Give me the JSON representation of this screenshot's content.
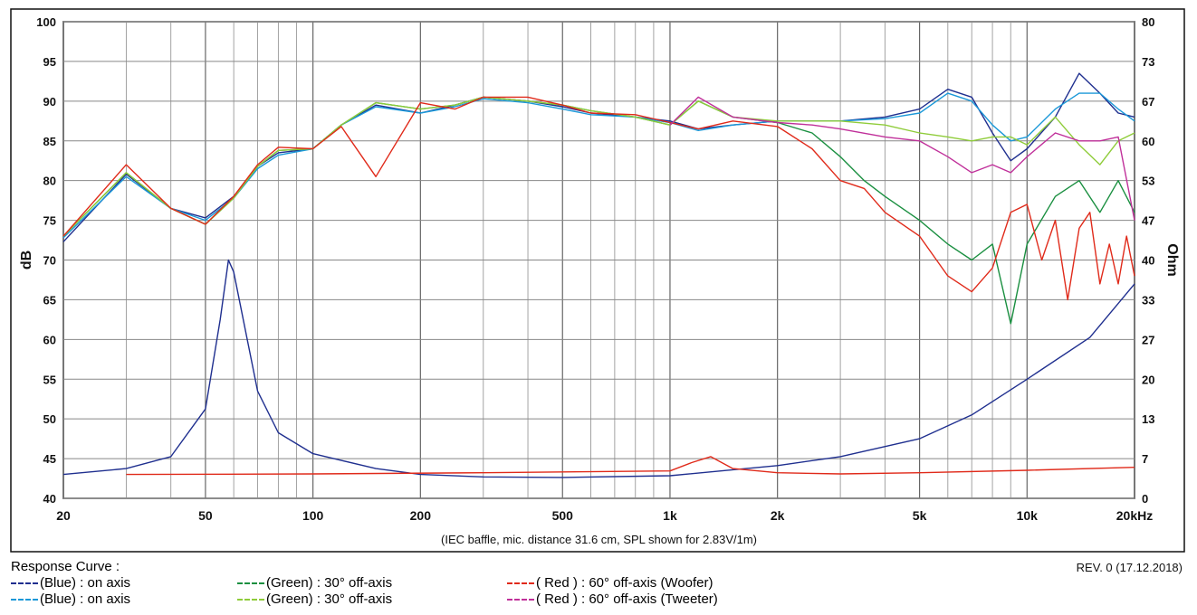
{
  "chart_data": {
    "type": "line",
    "xlabel": "",
    "ylabel": "dB",
    "y2label": "Ohm",
    "x_scale": "log",
    "xlim": [
      20,
      20000
    ],
    "ylim": [
      40,
      100
    ],
    "y2lim": [
      0,
      80
    ],
    "grid": true,
    "x_tick_labels": [
      {
        "v": 20,
        "t": "20"
      },
      {
        "v": 50,
        "t": "50"
      },
      {
        "v": 100,
        "t": "100"
      },
      {
        "v": 200,
        "t": "200"
      },
      {
        "v": 500,
        "t": "500"
      },
      {
        "v": 1000,
        "t": "1k"
      },
      {
        "v": 2000,
        "t": "2k"
      },
      {
        "v": 5000,
        "t": "5k"
      },
      {
        "v": 10000,
        "t": "10k"
      },
      {
        "v": 20000,
        "t": "20kHz"
      }
    ],
    "y_ticks": [
      40,
      45,
      50,
      55,
      60,
      65,
      70,
      75,
      80,
      85,
      90,
      95,
      100
    ],
    "y2_tick_labels": [
      {
        "v": 0,
        "t": "0"
      },
      {
        "v": 6.67,
        "t": "7"
      },
      {
        "v": 13.33,
        "t": "13"
      },
      {
        "v": 20,
        "t": "20"
      },
      {
        "v": 26.67,
        "t": "27"
      },
      {
        "v": 33.33,
        "t": "33"
      },
      {
        "v": 40,
        "t": "40"
      },
      {
        "v": 46.67,
        "t": "47"
      },
      {
        "v": 53.33,
        "t": "53"
      },
      {
        "v": 60,
        "t": "60"
      },
      {
        "v": 66.67,
        "t": "67"
      },
      {
        "v": 73.33,
        "t": "73"
      },
      {
        "v": 80,
        "t": "80"
      }
    ],
    "annotation": "(IEC baffle, mic. distance 31.6 cm, SPL shown for 2.83V/1m)",
    "series": [
      {
        "name": "(Blue)  : on axis",
        "color": "#1f2f8f",
        "x": [
          20,
          30,
          40,
          50,
          60,
          70,
          80,
          100,
          120,
          150,
          200,
          250,
          300,
          400,
          500,
          600,
          800,
          1000,
          1200,
          1500,
          2000,
          3000,
          4000,
          5000,
          6000,
          7000,
          8000,
          9000,
          10000,
          12000,
          14000,
          16000,
          18000,
          20000
        ],
        "y": [
          72.3,
          80.8,
          76.5,
          75.3,
          78,
          81.8,
          83.5,
          84,
          87,
          89.5,
          88.5,
          89.5,
          90.5,
          90,
          89.3,
          88.5,
          88,
          87.5,
          86.5,
          87,
          87.5,
          87.5,
          88,
          89,
          91.5,
          90.5,
          86,
          82.5,
          84,
          88,
          93.5,
          91,
          88.5,
          88
        ]
      },
      {
        "name": "(Blue)  : on axis",
        "color": "#1a98d8",
        "x": [
          20,
          30,
          40,
          50,
          60,
          70,
          80,
          100,
          120,
          150,
          200,
          250,
          300,
          400,
          500,
          600,
          800,
          1000,
          1200,
          1500,
          2000,
          3000,
          4000,
          5000,
          6000,
          7000,
          8000,
          9000,
          10000,
          12000,
          14000,
          16000,
          18000,
          20000
        ],
        "y": [
          72.8,
          80.5,
          76.5,
          75,
          77.8,
          81.5,
          83.2,
          84,
          87,
          89.3,
          88.5,
          89.3,
          90.3,
          89.8,
          89,
          88.3,
          88,
          87.3,
          86.3,
          87,
          87.5,
          87.5,
          87.8,
          88.5,
          91,
          90,
          87,
          85,
          85.5,
          89,
          91,
          91,
          89,
          87.5
        ]
      },
      {
        "name": "(Green) : 30° off-axis",
        "color": "#1a8f40",
        "x": [
          20,
          30,
          40,
          50,
          60,
          70,
          80,
          100,
          120,
          150,
          200,
          250,
          300,
          400,
          500,
          600,
          800,
          1000,
          1200,
          1500,
          2000,
          2500,
          3000,
          3500,
          4000,
          5000,
          6000,
          7000,
          8000,
          9000,
          10000,
          12000,
          14000,
          16000,
          18000,
          20000
        ],
        "y": [
          73,
          81,
          76.5,
          74.5,
          77.8,
          81.8,
          83.8,
          84,
          87,
          89.8,
          89,
          89.5,
          90.5,
          90,
          89.5,
          88.8,
          88,
          87,
          90,
          88,
          87.3,
          86,
          83,
          80,
          78,
          75,
          72,
          70,
          72,
          62,
          72,
          78,
          80,
          76,
          80,
          76
        ]
      },
      {
        "name": "(Green) : 30° off-axis",
        "color": "#8fcc3a",
        "x": [
          20,
          30,
          40,
          50,
          60,
          70,
          80,
          100,
          120,
          150,
          200,
          250,
          300,
          400,
          500,
          600,
          800,
          1000,
          1200,
          1500,
          2000,
          3000,
          4000,
          5000,
          6000,
          7000,
          8000,
          9000,
          10000,
          12000,
          14000,
          16000,
          18000,
          20000
        ],
        "y": [
          73,
          81,
          76.5,
          74.5,
          77.8,
          81.8,
          83.8,
          84,
          87,
          89.8,
          89,
          89.5,
          90.5,
          90,
          89.5,
          88.8,
          88,
          87,
          90,
          88,
          87.5,
          87.5,
          87,
          86,
          85.5,
          85,
          85.5,
          85.5,
          84.5,
          88,
          84.5,
          82,
          85,
          86
        ]
      },
      {
        "name": "( Red ) : 60° off-axis (Woofer)",
        "color": "#e02a1a",
        "x": [
          20,
          30,
          40,
          50,
          60,
          70,
          80,
          100,
          120,
          150,
          200,
          250,
          300,
          400,
          500,
          600,
          800,
          1000,
          1200,
          1500,
          2000,
          2500,
          3000,
          3500,
          4000,
          5000,
          6000,
          7000,
          8000,
          9000,
          10000,
          11000,
          12000,
          13000,
          14000,
          15000,
          16000,
          17000,
          18000,
          19000,
          20000
        ],
        "y": [
          73,
          82,
          76.5,
          74.5,
          78,
          82,
          84.2,
          84,
          86.8,
          80.5,
          89.8,
          89,
          90.5,
          90.5,
          89.5,
          88.5,
          88.3,
          87.3,
          86.5,
          87.5,
          86.8,
          84,
          80,
          79,
          76,
          73,
          68,
          66,
          69,
          76,
          77,
          70,
          75,
          65,
          74,
          76,
          67,
          72,
          67,
          73,
          68
        ]
      },
      {
        "name": "( Red ) : 60° off-axis (Tweeter)",
        "color": "#c0309a",
        "x": [
          1000,
          1200,
          1500,
          2000,
          2500,
          3000,
          4000,
          5000,
          6000,
          7000,
          8000,
          9000,
          10000,
          12000,
          14000,
          16000,
          18000,
          20000
        ],
        "y": [
          87,
          90.5,
          88,
          87.3,
          87,
          86.5,
          85.5,
          85,
          83,
          81,
          82,
          81,
          83,
          86,
          85,
          85,
          85.5,
          75
        ]
      },
      {
        "name": "Blue impedance",
        "color": "#1f2f8f",
        "axis": "y2",
        "x": [
          20,
          30,
          40,
          50,
          55,
          58,
          60,
          70,
          80,
          100,
          150,
          200,
          300,
          500,
          1000,
          1500,
          2000,
          3000,
          5000,
          7000,
          10000,
          15000,
          20000
        ],
        "y": [
          4,
          5,
          7,
          15,
          30,
          40,
          38,
          18,
          11,
          7.5,
          5,
          4,
          3.6,
          3.5,
          3.8,
          4.8,
          5.5,
          7,
          10,
          14,
          20,
          27,
          36
        ]
      },
      {
        "name": "Red impedance",
        "color": "#e02a1a",
        "axis": "y2",
        "x": [
          30,
          100,
          300,
          1000,
          1150,
          1300,
          1500,
          2000,
          3000,
          5000,
          10000,
          20000
        ],
        "y": [
          4,
          4.1,
          4.3,
          4.6,
          6,
          7,
          5,
          4.3,
          4.1,
          4.3,
          4.7,
          5.2
        ]
      }
    ]
  },
  "legend": {
    "title": "Response Curve :",
    "items": [
      {
        "label": "(Blue)  : on axis",
        "color": "#1f2f8f"
      },
      {
        "label": "(Blue)  : on axis",
        "color": "#1a98d8"
      },
      {
        "label": "(Green) : 30° off-axis",
        "color": "#1a8f40"
      },
      {
        "label": "(Green) : 30° off-axis",
        "color": "#8fcc3a"
      },
      {
        "label": "( Red ) : 60° off-axis (Woofer)",
        "color": "#e02a1a"
      },
      {
        "label": "( Red ) : 60° off-axis (Tweeter)",
        "color": "#c0309a"
      }
    ]
  },
  "revision": "REV. 0 (17.12.2018)"
}
